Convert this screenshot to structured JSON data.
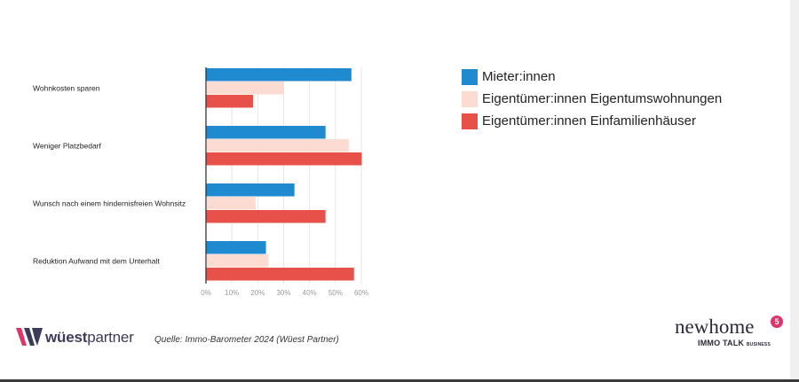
{
  "chart_data": {
    "type": "bar",
    "orientation": "horizontal",
    "categories": [
      "Wohnkosten sparen",
      "Weniger Platzbedarf",
      "Wunsch nach einem hindernisfreien Wohnsitz",
      "Reduktion Aufwand mit dem Unterhalt"
    ],
    "series": [
      {
        "name": "Mieter:innen",
        "color": "#1f8ad0",
        "values": [
          56,
          46,
          34,
          23
        ]
      },
      {
        "name": "Eigentümer:innen Eigentumswohnungen",
        "color": "#fcdcd2",
        "values": [
          30,
          55,
          19,
          24
        ]
      },
      {
        "name": "Eigentümer:innen Einfamilienhäuser",
        "color": "#e8504a",
        "values": [
          18,
          60,
          46,
          57
        ]
      }
    ],
    "x_ticks": [
      "0%",
      "10%",
      "20%",
      "30%",
      "40%",
      "50%",
      "60%"
    ],
    "xlim": [
      0,
      60
    ],
    "grid": true,
    "legend_position": "right"
  },
  "source": "Quelle: Immo-Barometer 2024 (Wüest Partner)",
  "logos": {
    "wuest_bold": "wüest",
    "wuest_rest": "partner",
    "newhome_word": "newhome",
    "newhome_badge": "5",
    "newhome_sub": "IMMO TALK",
    "newhome_sub_small": "BUSINESS"
  }
}
